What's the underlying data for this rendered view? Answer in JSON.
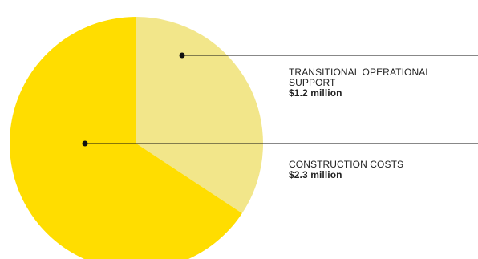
{
  "chart_data": {
    "type": "pie",
    "categories": [
      "TRANSITIONAL OPERATIONAL SUPPORT",
      "CONSTRUCTION COSTS"
    ],
    "values": [
      1.2,
      2.3
    ],
    "value_labels": [
      "$1.2 million",
      "$2.3 million"
    ],
    "colors": [
      "#F2E68A",
      "#FFDD00"
    ],
    "start": "top, clockwise",
    "legend": "callout labels on right"
  }
}
